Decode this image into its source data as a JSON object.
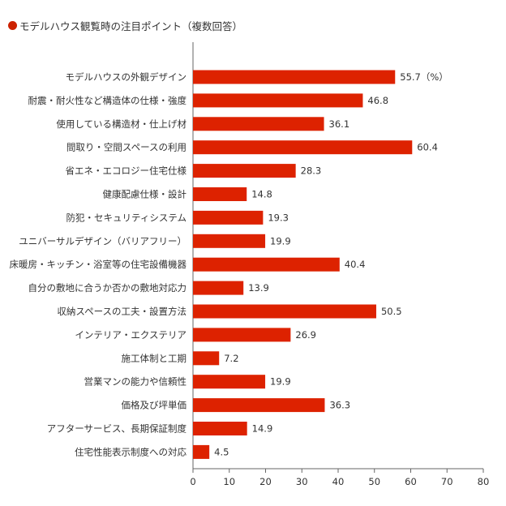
{
  "chart_data": {
    "type": "bar",
    "orientation": "horizontal",
    "title": "モデルハウス観覧時の注目ポイント（複数回答）",
    "unit_label": "（%）",
    "color": "#dd2200",
    "xlim": [
      0,
      80
    ],
    "xticks": [
      "0",
      "10",
      "20",
      "30",
      "40",
      "50",
      "60",
      "70",
      "80"
    ],
    "grid": false,
    "categories": [
      "モデルハウスの外観デザイン",
      "耐震・耐火性など構造体の仕様・強度",
      "使用している構造材・仕上げ材",
      "間取り・空間スペースの利用",
      "省エネ・エコロジー住宅仕様",
      "健康配慮仕様・設計",
      "防犯・セキュリティシステム",
      "ユニバーサルデザイン（バリアフリー）",
      "床暖房・キッチン・浴室等の住宅設備機器",
      "自分の敷地に合うか否かの敷地対応力",
      "収納スペースの工夫・設置方法",
      "インテリア・エクステリア",
      "施工体制と工期",
      "営業マンの能力や信頼性",
      "価格及び坪単価",
      "アフターサービス、長期保証制度",
      "住宅性能表示制度への対応"
    ],
    "values": [
      55.7,
      46.8,
      36.1,
      60.4,
      28.3,
      14.8,
      19.3,
      19.9,
      40.4,
      13.9,
      50.5,
      26.9,
      7.2,
      19.9,
      36.3,
      14.9,
      4.5
    ],
    "value_labels": [
      "55.7",
      "46.8",
      "36.1",
      "60.4",
      "28.3",
      "14.8",
      "19.3",
      "19.9",
      "40.4",
      "13.9",
      "50.5",
      "26.9",
      "7.2",
      "19.9",
      "36.3",
      "14.9",
      "4.5"
    ]
  }
}
